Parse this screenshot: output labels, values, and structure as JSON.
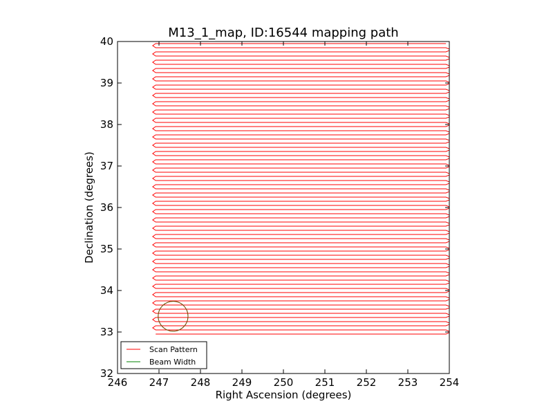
{
  "chart_data": {
    "type": "line",
    "title": "M13_1_map, ID:16544 mapping path",
    "xlabel": "Right Ascension (degrees)",
    "ylabel": "Declination (degrees)",
    "xlim": [
      246,
      254
    ],
    "ylim": [
      32,
      40
    ],
    "x_ticks": [
      "246",
      "247",
      "248",
      "249",
      "250",
      "251",
      "252",
      "253",
      "254"
    ],
    "y_ticks": [
      "32",
      "33",
      "34",
      "35",
      "36",
      "37",
      "38",
      "39",
      "40"
    ],
    "grid": false,
    "legend_position": "lower-left",
    "series": [
      {
        "name": "Scan Pattern",
        "color": "#ff0000",
        "kind": "raster-scan",
        "ra_range": [
          246.92,
          253.92
        ],
        "dec_range": [
          32.95,
          40.0
        ],
        "row_spacing": 0.1
      },
      {
        "name": "Beam Width",
        "color": "#008000",
        "kind": "circle",
        "center": [
          247.34,
          33.38
        ],
        "radius": 0.36
      }
    ]
  }
}
